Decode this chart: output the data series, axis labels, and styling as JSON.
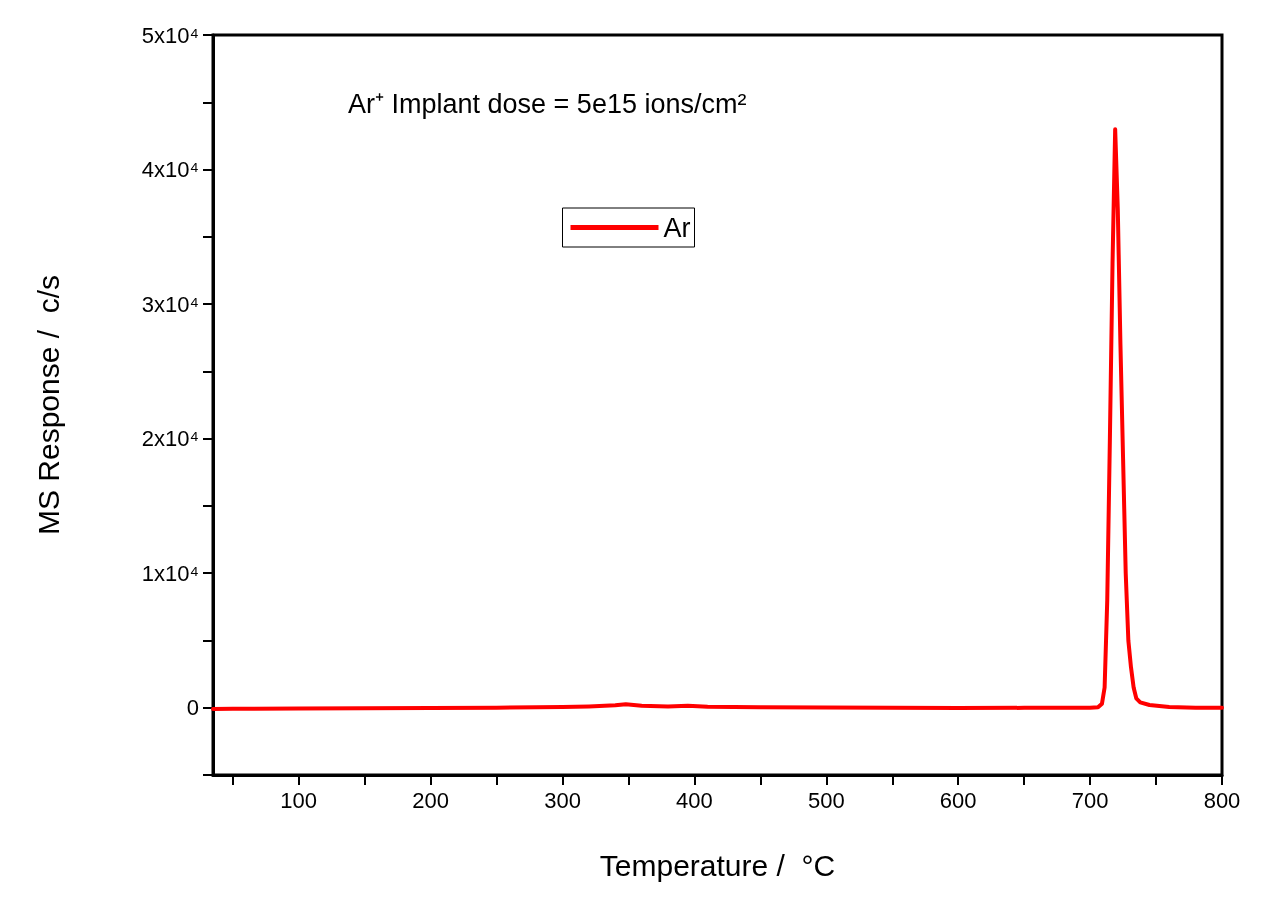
{
  "chart_data": {
    "type": "line",
    "xlabel": "Temperature /  °C",
    "ylabel": "MS Response /  c/s",
    "annotations": [
      "Ar⁺ Implant dose = 5e15 ions/cm²"
    ],
    "series": [
      {
        "name": "Ar",
        "color": "#ff0000",
        "x": [
          35,
          50,
          100,
          150,
          200,
          250,
          280,
          300,
          320,
          340,
          348,
          360,
          380,
          395,
          410,
          450,
          500,
          550,
          600,
          650,
          700,
          706,
          709,
          711,
          713,
          715,
          717,
          719,
          721,
          723,
          725,
          727,
          729,
          731,
          733,
          735,
          738,
          745,
          760,
          780,
          800
        ],
        "values": [
          -100,
          -80,
          -50,
          -40,
          -20,
          0,
          30,
          60,
          100,
          180,
          250,
          150,
          100,
          150,
          80,
          40,
          10,
          0,
          -20,
          -10,
          0,
          30,
          300,
          1500,
          8000,
          20000,
          33000,
          43000,
          37000,
          27000,
          18500,
          10000,
          5000,
          3000,
          1500,
          700,
          400,
          200,
          50,
          0,
          0
        ]
      }
    ],
    "xlim": [
      35,
      800
    ],
    "xticks": [
      {
        "value": 50,
        "label": null
      },
      100,
      {
        "value": 150,
        "label": null
      },
      200,
      {
        "value": 250,
        "label": null
      },
      300,
      {
        "value": 350,
        "label": null
      },
      400,
      {
        "value": 450,
        "label": null
      },
      500,
      {
        "value": 550,
        "label": null
      },
      600,
      {
        "value": 650,
        "label": null
      },
      700,
      {
        "value": 750,
        "label": null
      },
      800
    ],
    "ylim": [
      -5000,
      50000
    ],
    "yticks": [
      {
        "value": -5000,
        "label": null
      },
      0,
      {
        "value": 5000,
        "label": null
      },
      {
        "value": 10000,
        "label": "1x10⁴"
      },
      {
        "value": 15000,
        "label": null
      },
      {
        "value": 20000,
        "label": "2x10⁴"
      },
      {
        "value": 25000,
        "label": null
      },
      {
        "value": 30000,
        "label": "3x10⁴"
      },
      {
        "value": 35000,
        "label": null
      },
      {
        "value": 40000,
        "label": "4x10⁴"
      },
      {
        "value": 45000,
        "label": null
      },
      {
        "value": 50000,
        "label": "5x10⁴"
      }
    ],
    "grid": false,
    "legend": "top",
    "marker": "none",
    "line_style": "solid"
  }
}
